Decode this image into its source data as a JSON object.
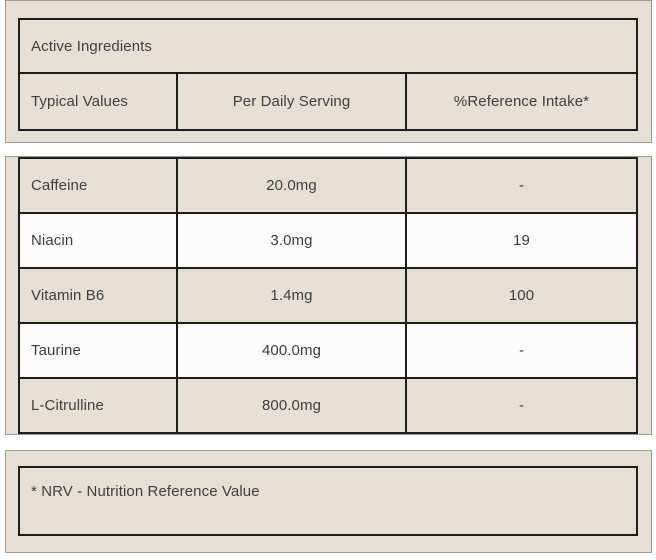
{
  "panel": {
    "section_title": "Active Ingredients",
    "columns": [
      "Typical Values",
      "Per Daily Serving",
      "%Reference Intake*"
    ],
    "rows": [
      {
        "name": "Caffeine",
        "per_serving": "20.0mg",
        "reference_intake": "-"
      },
      {
        "name": "Niacin",
        "per_serving": "3.0mg",
        "reference_intake": "19"
      },
      {
        "name": "Vitamin B6",
        "per_serving": "1.4mg",
        "reference_intake": "100"
      },
      {
        "name": "Taurine",
        "per_serving": "400.0mg",
        "reference_intake": "-"
      },
      {
        "name": "L-Citrulline",
        "per_serving": "800.0mg",
        "reference_intake": "-"
      }
    ],
    "footnote": "* NRV - Nutrition Reference Value",
    "colors": {
      "beige_background": "#e6e0d4",
      "alternate_row_white": "#fdfcfa",
      "dark_border": "#1c1c1c",
      "grey_border": "#9d9a93",
      "text": "#3f3e3b",
      "page_background": "#ffffff"
    }
  }
}
